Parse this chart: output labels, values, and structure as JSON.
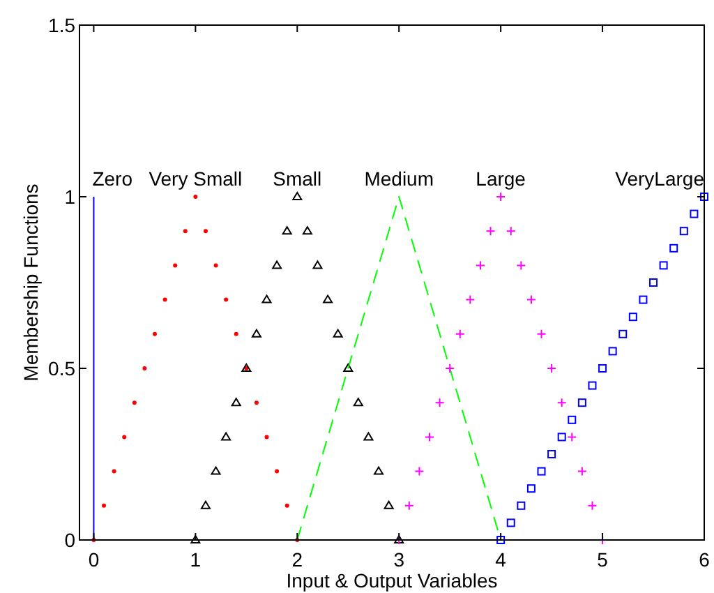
{
  "chart_data": {
    "type": "scatter",
    "xlabel": "Input & Output Variables",
    "ylabel": "Membership Functions",
    "xlim": [
      -0.14,
      6
    ],
    "ylim": [
      0,
      1.5
    ],
    "xticks": [
      0,
      1,
      2,
      3,
      4,
      5,
      6
    ],
    "yticks": [
      0,
      0.5,
      1,
      1.5
    ],
    "grid": false,
    "series": [
      {
        "name": "Zero",
        "type": "line",
        "color": "#0000ff",
        "line_style": "solid",
        "x": [
          0,
          0
        ],
        "values": [
          0,
          1
        ]
      },
      {
        "name": "Very Small",
        "marker": "circle",
        "color": "#ff0000",
        "x": [
          0,
          0.1,
          0.2,
          0.3,
          0.4,
          0.5,
          0.6,
          0.7,
          0.8,
          0.9,
          1,
          1.1,
          1.2,
          1.3,
          1.4,
          1.5,
          1.6,
          1.7,
          1.8,
          1.9,
          2
        ],
        "values": [
          0,
          0.1,
          0.2,
          0.3,
          0.4,
          0.5,
          0.6,
          0.7,
          0.8,
          0.9,
          1,
          0.9,
          0.8,
          0.7,
          0.6,
          0.5,
          0.4,
          0.3,
          0.2,
          0.1,
          0
        ]
      },
      {
        "name": "Small",
        "marker": "triangle",
        "color": "#000000",
        "x": [
          1,
          1.1,
          1.2,
          1.3,
          1.4,
          1.5,
          1.6,
          1.7,
          1.8,
          1.9,
          2,
          2.1,
          2.2,
          2.3,
          2.4,
          2.5,
          2.6,
          2.7,
          2.8,
          2.9,
          3
        ],
        "values": [
          0,
          0.1,
          0.2,
          0.3,
          0.4,
          0.5,
          0.6,
          0.7,
          0.8,
          0.9,
          1,
          0.9,
          0.8,
          0.7,
          0.6,
          0.5,
          0.4,
          0.3,
          0.2,
          0.1,
          0
        ]
      },
      {
        "name": "Medium",
        "type": "line",
        "color": "#00ff00",
        "line_style": "dashed",
        "x": [
          2,
          3,
          4
        ],
        "values": [
          0,
          1,
          0
        ]
      },
      {
        "name": "Large",
        "marker": "cross",
        "color": "#ff00ff",
        "x": [
          3,
          3.1,
          3.2,
          3.3,
          3.4,
          3.5,
          3.6,
          3.7,
          3.8,
          3.9,
          4,
          4.1,
          4.2,
          4.3,
          4.4,
          4.5,
          4.6,
          4.7,
          4.8,
          4.9,
          5
        ],
        "values": [
          0,
          0.1,
          0.2,
          0.3,
          0.4,
          0.5,
          0.6,
          0.7,
          0.8,
          0.9,
          1,
          0.9,
          0.8,
          0.7,
          0.6,
          0.5,
          0.4,
          0.3,
          0.2,
          0.1,
          0
        ]
      },
      {
        "name": "VeryLarge",
        "marker": "square",
        "color": "#0000ff",
        "x": [
          4,
          4.1,
          4.2,
          4.3,
          4.4,
          4.5,
          4.6,
          4.7,
          4.8,
          4.9,
          5,
          5.1,
          5.2,
          5.3,
          5.4,
          5.5,
          5.6,
          5.7,
          5.8,
          5.9,
          6
        ],
        "values": [
          0,
          0.05,
          0.1,
          0.15,
          0.2,
          0.25,
          0.3,
          0.35,
          0.4,
          0.45,
          0.5,
          0.55,
          0.6,
          0.65,
          0.7,
          0.75,
          0.8,
          0.85,
          0.9,
          0.95,
          1
        ]
      }
    ]
  }
}
